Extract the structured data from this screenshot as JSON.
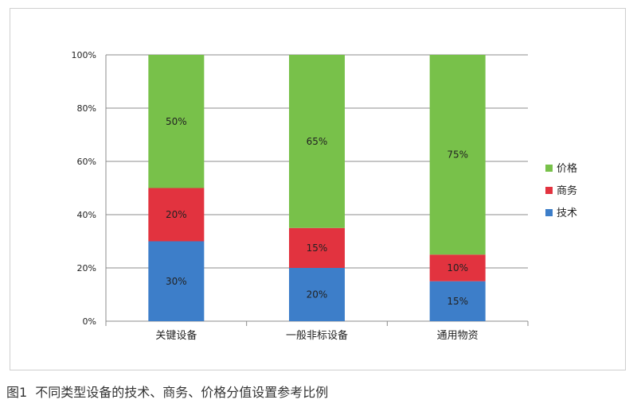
{
  "caption": {
    "figure_label": "图1",
    "text": "不同类型设备的技术、商务、价格分值设置参考比例"
  },
  "colors": {
    "price": "#78c14a",
    "business": "#e2333f",
    "tech": "#3d7ec9",
    "grid": "#8c8c8c",
    "axis_text": "#222222"
  },
  "chart_data": {
    "type": "bar",
    "stacked": true,
    "categories": [
      "关键设备",
      "一般非标设备",
      "通用物资"
    ],
    "series": [
      {
        "name": "技术",
        "values": [
          30,
          20,
          15
        ],
        "labels": [
          "30%",
          "20%",
          "15%"
        ]
      },
      {
        "name": "商务",
        "values": [
          20,
          15,
          10
        ],
        "labels": [
          "20%",
          "15%",
          "10%"
        ]
      },
      {
        "name": "价格",
        "values": [
          50,
          65,
          75
        ],
        "labels": [
          "50%",
          "65%",
          "75%"
        ]
      }
    ],
    "legend_order": [
      "价格",
      "商务",
      "技术"
    ],
    "legend_position": "right",
    "ylim": [
      0,
      100
    ],
    "yticks": [
      "0%",
      "20%",
      "40%",
      "60%",
      "80%",
      "100%"
    ],
    "grid": true
  }
}
